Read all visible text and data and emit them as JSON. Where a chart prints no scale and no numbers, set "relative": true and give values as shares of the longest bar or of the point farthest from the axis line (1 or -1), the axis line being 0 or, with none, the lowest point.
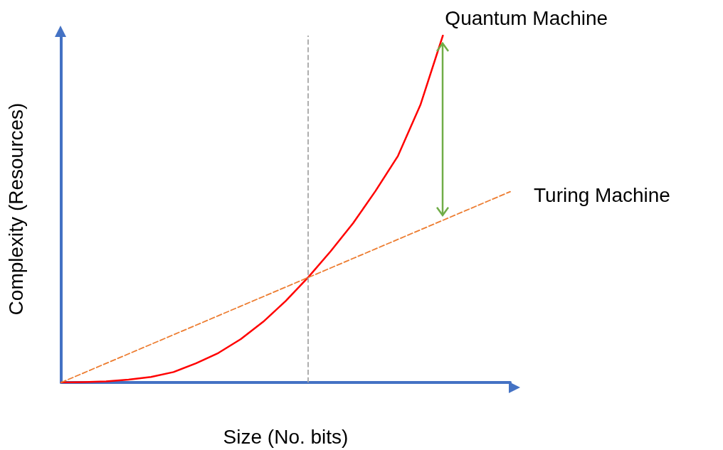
{
  "chart_data": {
    "type": "line",
    "relative": true,
    "xlabel": "Size (No. bits)",
    "ylabel": "Complexity (Resources)",
    "categories": [
      null,
      null,
      null,
      null,
      null,
      null,
      null,
      null,
      null,
      null,
      null,
      null,
      null,
      null,
      null,
      null,
      null,
      null,
      null,
      null,
      null
    ],
    "series": [
      {
        "name": "Quantum Machine",
        "color": "#ff0000",
        "line_style": "solid",
        "values": [
          0,
          0.001,
          0.003,
          0.008,
          0.016,
          0.03,
          0.055,
          0.085,
          0.125,
          0.175,
          0.235,
          0.303,
          0.378,
          0.459,
          0.552,
          0.653,
          0.8,
          1,
          null,
          null,
          null
        ]
      },
      {
        "name": "Turing Machine",
        "color": "#ed7d31",
        "line_style": "dashed",
        "values": [
          0,
          0.0275,
          0.055,
          0.0825,
          0.11,
          0.1375,
          0.165,
          0.1925,
          0.22,
          0.2475,
          0.275,
          0.3025,
          0.33,
          0.3575,
          0.385,
          0.4125,
          0.44,
          0.4675,
          0.495,
          0.5225,
          0.55
        ]
      }
    ],
    "marker": "none",
    "grid": false,
    "legend": false
  }
}
